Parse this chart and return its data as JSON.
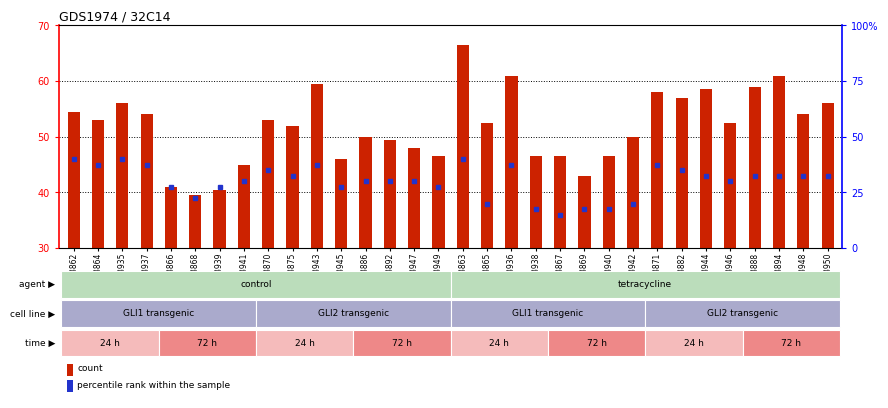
{
  "title": "GDS1974 / 32C14",
  "samples": [
    "GSM23862",
    "GSM23864",
    "GSM23935",
    "GSM23937",
    "GSM23866",
    "GSM23868",
    "GSM23939",
    "GSM23941",
    "GSM23870",
    "GSM23875",
    "GSM23943",
    "GSM23945",
    "GSM23886",
    "GSM23892",
    "GSM23947",
    "GSM23949",
    "GSM23863",
    "GSM23865",
    "GSM23936",
    "GSM23938",
    "GSM23867",
    "GSM23869",
    "GSM23940",
    "GSM23942",
    "GSM23871",
    "GSM23882",
    "GSM23944",
    "GSM23946",
    "GSM23888",
    "GSM23894",
    "GSM23948",
    "GSM23950"
  ],
  "count_values": [
    54.5,
    53.0,
    56.0,
    54.0,
    41.0,
    39.5,
    40.5,
    45.0,
    53.0,
    52.0,
    59.5,
    46.0,
    50.0,
    49.5,
    48.0,
    46.5,
    66.5,
    52.5,
    61.0,
    46.5,
    46.5,
    43.0,
    46.5,
    50.0,
    58.0,
    57.0,
    58.5,
    52.5,
    59.0,
    61.0,
    54.0,
    56.0
  ],
  "percentile_values": [
    46,
    45,
    46,
    45,
    41,
    39,
    41,
    42,
    44,
    43,
    45,
    41,
    42,
    42,
    42,
    41,
    46,
    38,
    45,
    37,
    36,
    37,
    37,
    38,
    45,
    44,
    43,
    42,
    43,
    43,
    43,
    43
  ],
  "bar_bottom": 30,
  "ylim_left": [
    30,
    70
  ],
  "ylim_right": [
    0,
    100
  ],
  "yticks_left": [
    30,
    40,
    50,
    60,
    70
  ],
  "yticks_right": [
    0,
    25,
    50,
    75,
    100
  ],
  "ytick_labels_right": [
    "0",
    "25",
    "50",
    "75",
    "100%"
  ],
  "bar_color": "#cc2200",
  "percentile_color": "#2233cc",
  "agent_groups": [
    {
      "label": "control",
      "start": 0,
      "end": 16,
      "color": "#bbddbb"
    },
    {
      "label": "tetracycline",
      "start": 16,
      "end": 32,
      "color": "#bbddbb"
    }
  ],
  "cell_line_groups": [
    {
      "label": "GLI1 transgenic",
      "start": 0,
      "end": 8,
      "color": "#aaaacc"
    },
    {
      "label": "GLI2 transgenic",
      "start": 8,
      "end": 16,
      "color": "#aaaacc"
    },
    {
      "label": "GLI1 transgenic",
      "start": 16,
      "end": 24,
      "color": "#aaaacc"
    },
    {
      "label": "GLI2 transgenic",
      "start": 24,
      "end": 32,
      "color": "#aaaacc"
    }
  ],
  "time_groups": [
    {
      "label": "24 h",
      "start": 0,
      "end": 4,
      "color": "#f5bbbb"
    },
    {
      "label": "72 h",
      "start": 4,
      "end": 8,
      "color": "#ee8888"
    },
    {
      "label": "24 h",
      "start": 8,
      "end": 12,
      "color": "#f5bbbb"
    },
    {
      "label": "72 h",
      "start": 12,
      "end": 16,
      "color": "#ee8888"
    },
    {
      "label": "24 h",
      "start": 16,
      "end": 20,
      "color": "#f5bbbb"
    },
    {
      "label": "72 h",
      "start": 20,
      "end": 24,
      "color": "#ee8888"
    },
    {
      "label": "24 h",
      "start": 24,
      "end": 28,
      "color": "#f5bbbb"
    },
    {
      "label": "72 h",
      "start": 28,
      "end": 32,
      "color": "#ee8888"
    }
  ],
  "legend_items": [
    {
      "label": "count",
      "color": "#cc2200"
    },
    {
      "label": "percentile rank within the sample",
      "color": "#2233cc"
    }
  ]
}
